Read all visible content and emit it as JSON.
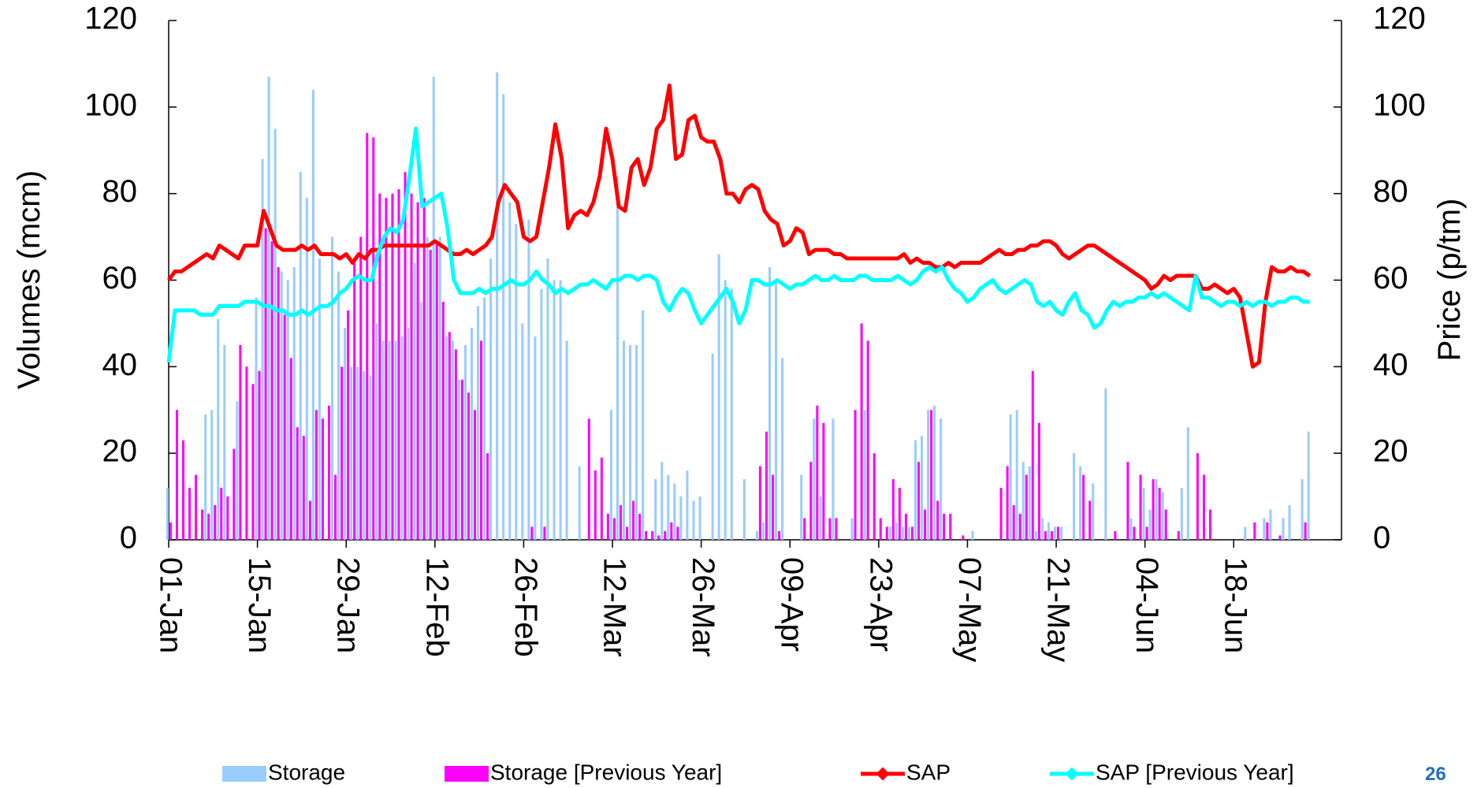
{
  "chart_data": {
    "type": "bar",
    "y_label": "Volumes (mcm)",
    "y2_label": "Price (p/tm)",
    "page_number": "26",
    "ylim": [
      0,
      120
    ],
    "yticks": [
      0,
      20,
      40,
      60,
      80,
      100,
      120
    ],
    "y2lim": [
      0,
      120
    ],
    "y2ticks": [
      0,
      20,
      40,
      60,
      80,
      100,
      120
    ],
    "categories": [
      "01-Jan",
      null,
      null,
      null,
      null,
      null,
      null,
      null,
      null,
      null,
      null,
      null,
      null,
      null,
      "15-Jan",
      null,
      null,
      null,
      null,
      null,
      null,
      null,
      null,
      null,
      null,
      null,
      null,
      null,
      "29-Jan",
      null,
      null,
      null,
      null,
      null,
      null,
      null,
      null,
      null,
      null,
      null,
      null,
      null,
      "12-Feb",
      null,
      null,
      null,
      null,
      null,
      null,
      null,
      null,
      null,
      null,
      null,
      null,
      null,
      "26-Feb",
      null,
      null,
      null,
      null,
      null,
      null,
      null,
      null,
      null,
      null,
      null,
      null,
      null,
      "12-Mar",
      null,
      null,
      null,
      null,
      null,
      null,
      null,
      null,
      null,
      null,
      null,
      null,
      null,
      "26-Mar",
      null,
      null,
      null,
      null,
      null,
      null,
      null,
      null,
      null,
      null,
      null,
      null,
      null,
      "09-Apr",
      null,
      null,
      null,
      null,
      null,
      null,
      null,
      null,
      null,
      null,
      null,
      null,
      null,
      "23-Apr",
      null,
      null,
      null,
      null,
      null,
      null,
      null,
      null,
      null,
      null,
      null,
      null,
      null,
      "07-May",
      null,
      null,
      null,
      null,
      null,
      null,
      null,
      null,
      null,
      null,
      null,
      null,
      null,
      "21-May",
      null,
      null,
      null,
      null,
      null,
      null,
      null,
      null,
      null,
      null,
      null,
      null,
      null,
      "04-Jun",
      null,
      null,
      null,
      null,
      null,
      null,
      null,
      null,
      null,
      null,
      null,
      null,
      null,
      "18-Jun",
      null,
      null,
      null,
      null,
      null,
      null,
      null,
      null,
      null,
      null,
      null,
      null
    ],
    "series": [
      {
        "name": "Storage",
        "type": "bar",
        "color": "#99ccff",
        "values": [
          12,
          0,
          0,
          0,
          0,
          0,
          29,
          30,
          51,
          45,
          0,
          32,
          0,
          0,
          56,
          88,
          107,
          95,
          62,
          60,
          63,
          85,
          79,
          104,
          65,
          0,
          70,
          62,
          49,
          40,
          40,
          39,
          38,
          50,
          46,
          46,
          46,
          47,
          49,
          64,
          55,
          70,
          107,
          70,
          47,
          46,
          37,
          45,
          49,
          54,
          56,
          65,
          108,
          103,
          78,
          73,
          50,
          74,
          47,
          58,
          65,
          60,
          60,
          46,
          0,
          17,
          0,
          0,
          0,
          0,
          30,
          84,
          46,
          45,
          45,
          53,
          0,
          14,
          18,
          15,
          13,
          10,
          16,
          9,
          10,
          0,
          43,
          66,
          60,
          58,
          0,
          14,
          0,
          2,
          4,
          63,
          60,
          42,
          0,
          0,
          15,
          0,
          28,
          10,
          0,
          28,
          0,
          0,
          5,
          0,
          30,
          0,
          0,
          0,
          3,
          4,
          3,
          3,
          23,
          24,
          30,
          31,
          28,
          0,
          0,
          0,
          0,
          2,
          0,
          0,
          0,
          0,
          0,
          29,
          30,
          18,
          17,
          2,
          5,
          4,
          3,
          3,
          0,
          20,
          17,
          0,
          13,
          0,
          35,
          0,
          0,
          0,
          5,
          0,
          12,
          7,
          14,
          11,
          0,
          0,
          12,
          26,
          0,
          0,
          0,
          0,
          0,
          0,
          0,
          0,
          3,
          0,
          0,
          5,
          7,
          0,
          5,
          8,
          0,
          14,
          25
        ]
      },
      {
        "name": "Storage [Previous Year]",
        "type": "bar",
        "color": "#ff00ff",
        "values": [
          4,
          30,
          23,
          12,
          15,
          7,
          6,
          8,
          12,
          10,
          21,
          45,
          40,
          36,
          39,
          72,
          69,
          63,
          52,
          42,
          26,
          24,
          9,
          30,
          28,
          31,
          15,
          40,
          53,
          64,
          70,
          94,
          93,
          80,
          79,
          80,
          81,
          85,
          80,
          78,
          79,
          67,
          69,
          55,
          48,
          44,
          37,
          34,
          30,
          46,
          20,
          0,
          0,
          0,
          0,
          0,
          0,
          3,
          0,
          3,
          0,
          0,
          0,
          0,
          0,
          0,
          28,
          16,
          19,
          6,
          5,
          8,
          3,
          9,
          6,
          2,
          2,
          1,
          2,
          4,
          3,
          0,
          0,
          0,
          0,
          0,
          0,
          0,
          0,
          0,
          0,
          0,
          0,
          17,
          25,
          15,
          2,
          0,
          0,
          0,
          5,
          18,
          31,
          27,
          5,
          5,
          0,
          0,
          30,
          50,
          46,
          20,
          5,
          3,
          14,
          12,
          6,
          3,
          18,
          7,
          30,
          9,
          6,
          6,
          0,
          1,
          0,
          0,
          0,
          0,
          0,
          12,
          17,
          8,
          6,
          15,
          39,
          27,
          2,
          2,
          3,
          0,
          0,
          0,
          15,
          9,
          0,
          0,
          0,
          2,
          0,
          18,
          3,
          15,
          3,
          14,
          12,
          7,
          0,
          2,
          0,
          0,
          20,
          15,
          7,
          0,
          0,
          0,
          0,
          0,
          0,
          4,
          0,
          4,
          0,
          1,
          0,
          0,
          0,
          4,
          0
        ]
      },
      {
        "name": "SAP",
        "type": "line",
        "axis": "y2",
        "color": "#ff0000",
        "values": [
          60,
          62,
          62,
          63,
          64,
          65,
          66,
          65,
          68,
          67,
          66,
          65,
          68,
          68,
          68,
          76,
          72,
          68,
          67,
          67,
          67,
          68,
          67,
          68,
          66,
          66,
          66,
          65,
          66,
          64,
          66,
          65,
          67,
          67,
          68,
          68,
          68,
          68,
          68,
          68,
          68,
          68,
          69,
          68,
          67,
          66,
          66,
          67,
          66,
          67,
          68,
          70,
          78,
          82,
          80,
          78,
          70,
          69,
          70,
          78,
          86,
          96,
          88,
          72,
          75,
          76,
          75,
          78,
          84,
          95,
          88,
          77,
          76,
          86,
          88,
          82,
          86,
          95,
          97,
          105,
          88,
          89,
          97,
          98,
          93,
          92,
          92,
          88,
          80,
          80,
          78,
          81,
          82,
          81,
          76,
          74,
          73,
          68,
          69,
          72,
          71,
          66,
          67,
          67,
          67,
          66,
          66,
          65,
          65,
          65,
          65,
          65,
          65,
          65,
          65,
          65,
          66,
          64,
          65,
          64,
          64,
          63,
          63,
          64,
          63,
          64,
          64,
          64,
          64,
          65,
          66,
          67,
          66,
          66,
          67,
          67,
          68,
          68,
          69,
          69,
          68,
          66,
          65,
          66,
          67,
          68,
          68,
          67,
          66,
          65,
          64,
          63,
          62,
          61,
          60,
          58,
          59,
          61,
          60,
          61,
          61,
          61,
          61,
          58,
          58,
          59,
          58,
          57,
          58,
          56,
          48,
          40,
          41,
          55,
          63,
          62,
          62,
          63,
          62,
          62,
          61
        ]
      },
      {
        "name": "SAP [Previous Year]",
        "type": "line",
        "axis": "y2",
        "color": "#00ffff",
        "values": [
          41,
          53,
          53,
          53,
          53,
          52,
          52,
          52,
          54,
          54,
          54,
          54,
          55,
          55,
          55,
          54,
          54,
          53,
          53,
          52,
          52,
          53,
          52,
          53,
          54,
          54,
          55,
          57,
          58,
          60,
          61,
          60,
          60,
          66,
          70,
          72,
          71,
          74,
          84,
          95,
          77,
          78,
          79,
          80,
          72,
          60,
          57,
          57,
          57,
          58,
          57,
          58,
          58,
          59,
          60,
          59,
          59,
          60,
          62,
          60,
          59,
          57,
          58,
          57,
          58,
          59,
          59,
          60,
          59,
          58,
          60,
          60,
          61,
          61,
          60,
          61,
          61,
          60,
          55,
          53,
          56,
          58,
          57,
          53,
          50,
          52,
          54,
          56,
          58,
          55,
          50,
          53,
          60,
          60,
          59,
          59,
          60,
          59,
          58,
          59,
          59,
          60,
          61,
          60,
          60,
          61,
          60,
          60,
          60,
          61,
          61,
          60,
          60,
          60,
          60,
          61,
          60,
          59,
          60,
          62,
          63,
          62,
          63,
          60,
          58,
          57,
          55,
          56,
          58,
          59,
          60,
          58,
          57,
          58,
          59,
          60,
          59,
          55,
          54,
          55,
          53,
          52,
          55,
          57,
          53,
          52,
          49,
          50,
          53,
          55,
          54,
          55,
          55,
          56,
          56,
          57,
          56,
          57,
          56,
          55,
          54,
          53,
          61,
          56,
          56,
          55,
          54,
          55,
          55,
          54,
          55,
          54,
          55,
          55,
          54,
          55,
          55,
          56,
          56,
          55,
          55
        ]
      }
    ]
  }
}
